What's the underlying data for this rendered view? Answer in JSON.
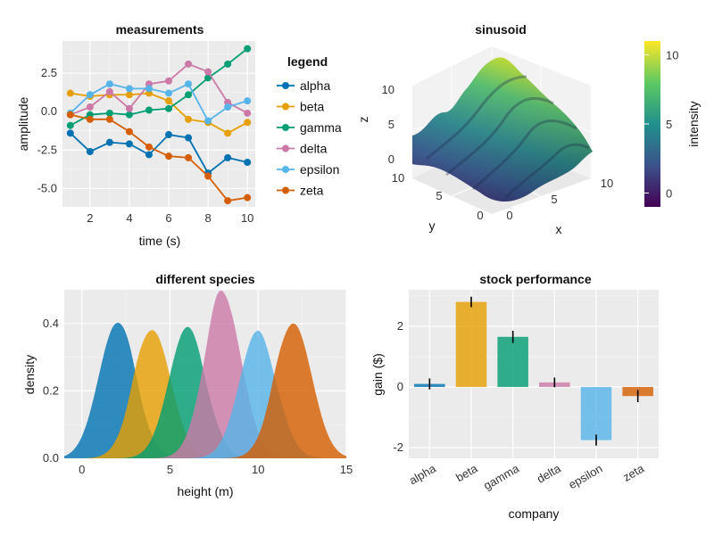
{
  "palette": {
    "alpha": "#0072B2",
    "beta": "#E69F00",
    "gamma": "#009E73",
    "delta": "#CC79A7",
    "epsilon": "#56B4E9",
    "zeta": "#D55E00"
  },
  "chart_data": [
    {
      "id": "measurements",
      "type": "line",
      "title": "measurements",
      "xlabel": "time (s)",
      "ylabel": "amplitude",
      "xlim": [
        0.6,
        10.4
      ],
      "ylim": [
        -6.2,
        4.6
      ],
      "xticks": [
        2,
        4,
        6,
        8,
        10
      ],
      "yticks": [
        2.5,
        0.0,
        -2.5,
        -5.0
      ],
      "ytick_labels": [
        "2.5",
        "0.0",
        "-2.5",
        "-5.0"
      ],
      "grid": true,
      "legend_title": "legend",
      "legend_position": "right",
      "x": [
        1,
        2,
        3,
        4,
        5,
        6,
        7,
        8,
        9,
        10
      ],
      "series": [
        {
          "name": "alpha",
          "values": [
            -1.4,
            -2.6,
            -2.0,
            -2.1,
            -2.8,
            -1.5,
            -1.7,
            -4.0,
            -3.0,
            -3.3
          ]
        },
        {
          "name": "beta",
          "values": [
            1.2,
            1.0,
            1.1,
            1.1,
            1.2,
            0.7,
            -0.5,
            -0.7,
            -1.4,
            -0.7
          ]
        },
        {
          "name": "gamma",
          "values": [
            -0.9,
            -0.2,
            -0.1,
            -0.2,
            0.1,
            0.2,
            1.1,
            2.2,
            3.1,
            4.1
          ]
        },
        {
          "name": "delta",
          "values": [
            -0.2,
            0.3,
            1.3,
            0.2,
            1.8,
            2.0,
            3.1,
            2.6,
            0.6,
            -0.1
          ]
        },
        {
          "name": "epsilon",
          "values": [
            -0.1,
            1.1,
            1.8,
            1.5,
            1.5,
            1.2,
            1.8,
            -0.6,
            0.3,
            0.7
          ]
        },
        {
          "name": "zeta",
          "values": [
            -0.2,
            -0.5,
            -0.5,
            -1.3,
            -2.3,
            -2.9,
            -3.0,
            -4.2,
            -5.8,
            -5.6
          ]
        }
      ]
    },
    {
      "id": "sinusoid",
      "type": "surface",
      "title": "sinusoid",
      "xlabel": "x",
      "ylabel": "y",
      "zlabel": "z",
      "xticks": [
        0,
        5,
        10
      ],
      "yticks": [
        0,
        5,
        10
      ],
      "zticks": [
        0,
        5,
        10
      ],
      "colorbar_label": "intensity",
      "colorbar_ticks": [
        0,
        5,
        10
      ],
      "colorbar_range": [
        -1,
        11
      ],
      "colormap": "viridis"
    },
    {
      "id": "species",
      "type": "area",
      "title": "different species",
      "xlabel": "height (m)",
      "ylabel": "density",
      "xlim": [
        -1,
        15
      ],
      "ylim": [
        0,
        0.5
      ],
      "xticks": [
        0,
        5,
        10,
        15
      ],
      "yticks": [
        0.0,
        0.2,
        0.4
      ],
      "ytick_labels": [
        "0.0",
        "0.2",
        "0.4"
      ],
      "grid": true,
      "series": [
        {
          "name": "alpha",
          "center": 2,
          "peak": 0.4
        },
        {
          "name": "beta",
          "center": 4,
          "peak": 0.38
        },
        {
          "name": "gamma",
          "center": 6,
          "peak": 0.39
        },
        {
          "name": "delta",
          "center": 8,
          "peak": 0.48
        },
        {
          "name": "epsilon",
          "center": 10,
          "peak": 0.38
        },
        {
          "name": "zeta",
          "center": 12,
          "peak": 0.4
        }
      ]
    },
    {
      "id": "stock",
      "type": "bar",
      "title": "stock performance",
      "xlabel": "company",
      "ylabel": "gain ($)",
      "ylim": [
        -2.35,
        3.2
      ],
      "yticks": [
        2,
        0,
        -2
      ],
      "categories": [
        "alpha",
        "beta",
        "gamma",
        "delta",
        "epsilon",
        "zeta"
      ],
      "values": [
        0.1,
        2.8,
        1.65,
        0.15,
        -1.75,
        -0.3
      ],
      "errors": [
        0.18,
        0.17,
        0.2,
        0.16,
        0.18,
        0.2
      ],
      "grid": true
    }
  ]
}
